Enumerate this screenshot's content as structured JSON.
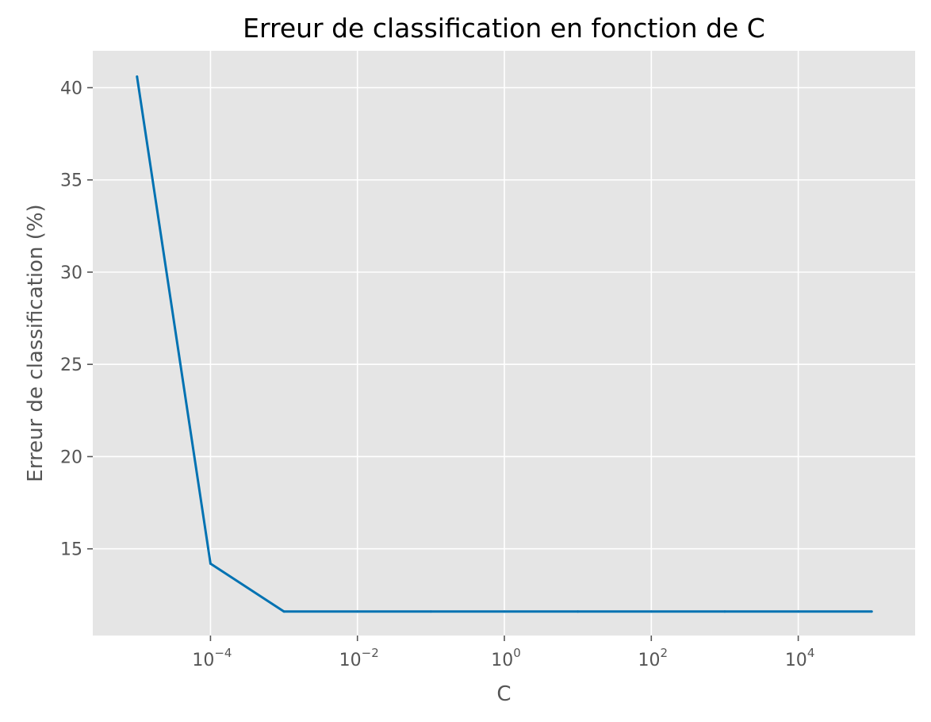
{
  "chart_data": {
    "type": "line",
    "title": "Erreur de classification en fonction de C",
    "xlabel": "C",
    "ylabel": "Erreur de classification (%)",
    "x_scale": "log",
    "y_scale": "linear",
    "xlim": [
      2.5e-06,
      390000.0
    ],
    "ylim": [
      10.3,
      42.0
    ],
    "x_ticks": [
      {
        "value": 0.0001,
        "base": "10",
        "exp": "−4"
      },
      {
        "value": 0.01,
        "base": "10",
        "exp": "−2"
      },
      {
        "value": 1,
        "base": "10",
        "exp": "0"
      },
      {
        "value": 100,
        "base": "10",
        "exp": "2"
      },
      {
        "value": 10000,
        "base": "10",
        "exp": "4"
      }
    ],
    "y_ticks": [
      15,
      20,
      25,
      30,
      35,
      40
    ],
    "grid": true,
    "background": "#e5e5e5",
    "series": [
      {
        "color": "#0072b2",
        "x": [
          1e-05,
          0.0001,
          0.001,
          0.01,
          0.1,
          1,
          10,
          100,
          1000,
          10000,
          100000
        ],
        "y": [
          40.6,
          14.2,
          11.6,
          11.6,
          11.6,
          11.6,
          11.6,
          11.6,
          11.6,
          11.6,
          11.6
        ]
      }
    ]
  }
}
